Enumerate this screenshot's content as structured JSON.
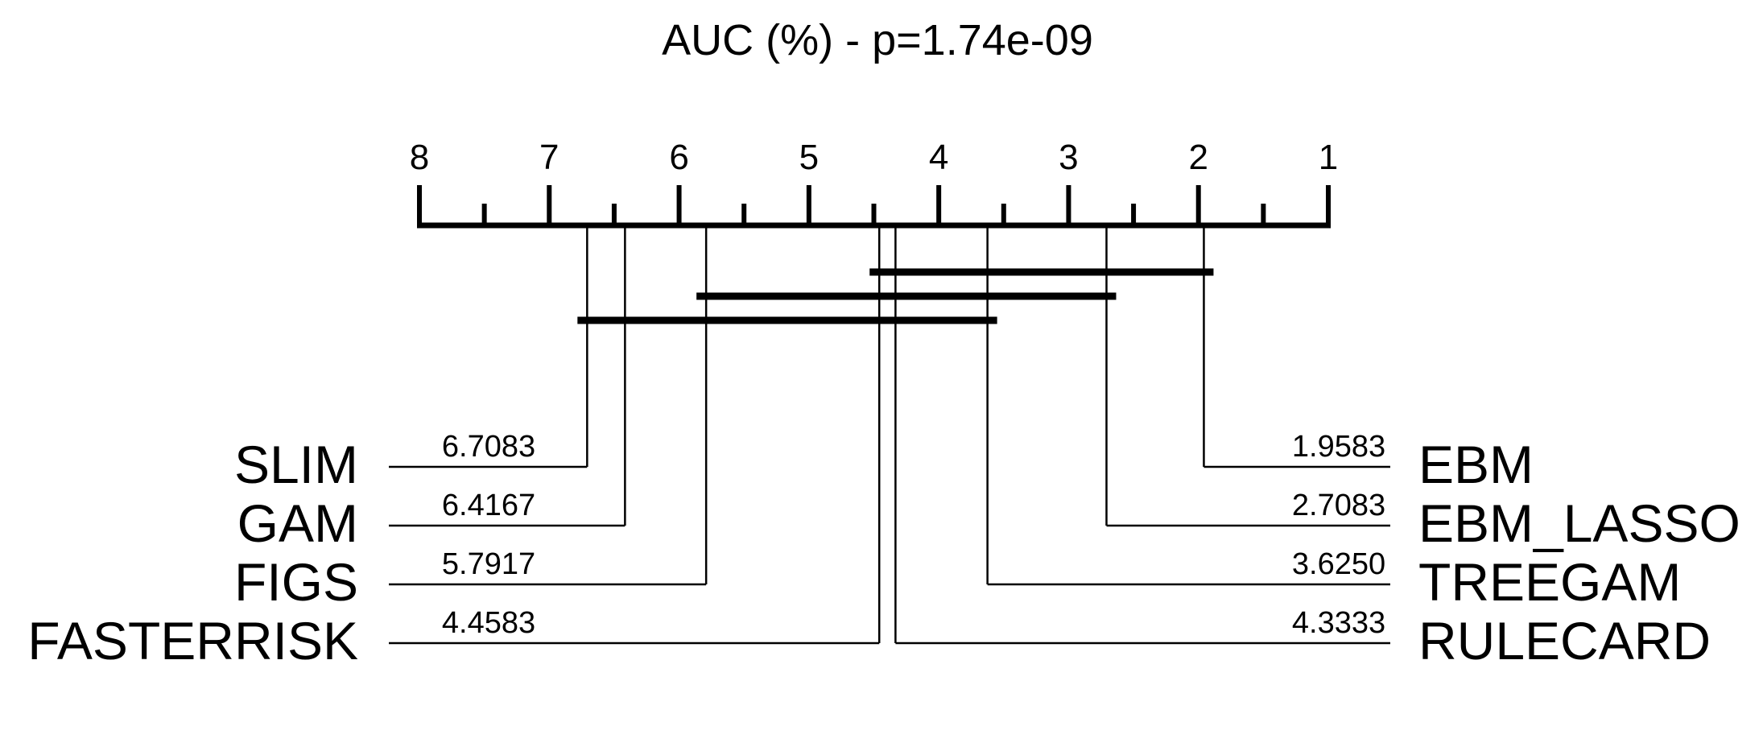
{
  "chart_data": {
    "type": "critical-difference-diagram",
    "title": "AUC (%) - p=1.74e-09",
    "axis": {
      "min": 1,
      "max": 8,
      "reversed": true,
      "tick_labels": [
        "8",
        "7",
        "6",
        "5",
        "4",
        "3",
        "2",
        "1"
      ],
      "minor_ticks": [
        7.5,
        6.5,
        5.5,
        4.5,
        3.5,
        2.5,
        1.5
      ]
    },
    "left_methods": [
      {
        "name": "SLIM",
        "rank": 6.7083,
        "rank_label": "6.7083"
      },
      {
        "name": "GAM",
        "rank": 6.4167,
        "rank_label": "6.4167"
      },
      {
        "name": "FIGS",
        "rank": 5.7917,
        "rank_label": "5.7917"
      },
      {
        "name": "FASTERRISK",
        "rank": 4.4583,
        "rank_label": "4.4583"
      }
    ],
    "right_methods": [
      {
        "name": "EBM",
        "rank": 1.9583,
        "rank_label": "1.9583"
      },
      {
        "name": "EBM_LASSO",
        "rank": 2.7083,
        "rank_label": "2.7083"
      },
      {
        "name": "TREEGAM",
        "rank": 3.625,
        "rank_label": "3.6250"
      },
      {
        "name": "RULECARD",
        "rank": 4.3333,
        "rank_label": "4.3333"
      }
    ],
    "cliques": [
      {
        "from": 1.9583,
        "to": 4.4583
      },
      {
        "from": 2.7083,
        "to": 5.7917
      },
      {
        "from": 3.625,
        "to": 6.7083
      }
    ]
  }
}
